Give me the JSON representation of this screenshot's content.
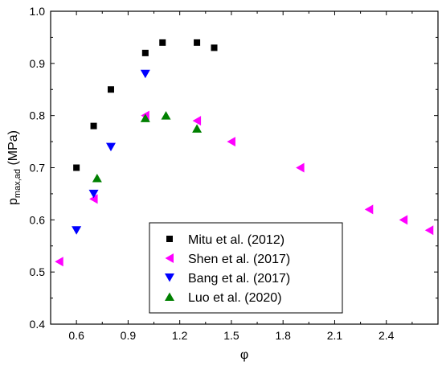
{
  "chart_data": {
    "type": "scatter",
    "title": "",
    "xlabel": "φ",
    "ylabel_main": "p",
    "ylabel_sub": "max,ad",
    "ylabel_unit": " (MPa)",
    "xlim": [
      0.45,
      2.7
    ],
    "ylim": [
      0.4,
      1.0
    ],
    "x_ticks": [
      0.6,
      0.9,
      1.2,
      1.5,
      1.8,
      2.1,
      2.4
    ],
    "x_tick_labels": [
      "0.6",
      "0.9",
      "1.2",
      "1.5",
      "1.8",
      "2.1",
      "2.4"
    ],
    "y_ticks": [
      0.4,
      0.5,
      0.6,
      0.7,
      0.8,
      0.9,
      1.0
    ],
    "y_tick_labels": [
      "0.4",
      "0.5",
      "0.6",
      "0.7",
      "0.8",
      "0.9",
      "1.0"
    ],
    "grid": false,
    "legend_position": "bottom-center",
    "series": [
      {
        "name": "Mitu et al. (2012)",
        "marker": "square",
        "color": "#000000",
        "points": [
          [
            0.6,
            0.7
          ],
          [
            0.7,
            0.78
          ],
          [
            0.8,
            0.85
          ],
          [
            1.0,
            0.92
          ],
          [
            1.1,
            0.94
          ],
          [
            1.3,
            0.94
          ],
          [
            1.4,
            0.93
          ]
        ]
      },
      {
        "name": "Shen et al. (2017)",
        "marker": "triangle-left",
        "color": "#ff00ff",
        "points": [
          [
            0.5,
            0.52
          ],
          [
            0.7,
            0.64
          ],
          [
            1.0,
            0.8
          ],
          [
            1.3,
            0.79
          ],
          [
            1.5,
            0.75
          ],
          [
            1.9,
            0.7
          ],
          [
            2.3,
            0.62
          ],
          [
            2.5,
            0.6
          ],
          [
            2.65,
            0.58
          ]
        ]
      },
      {
        "name": "Bang et al. (2017)",
        "marker": "triangle-down",
        "color": "#0000ff",
        "points": [
          [
            0.6,
            0.58
          ],
          [
            0.7,
            0.65
          ],
          [
            0.8,
            0.74
          ],
          [
            1.0,
            0.88
          ]
        ]
      },
      {
        "name": "Luo et al. (2020)",
        "marker": "triangle-up",
        "color": "#008000",
        "points": [
          [
            0.72,
            0.68
          ],
          [
            1.0,
            0.795
          ],
          [
            1.12,
            0.8
          ],
          [
            1.3,
            0.775
          ]
        ]
      }
    ]
  }
}
